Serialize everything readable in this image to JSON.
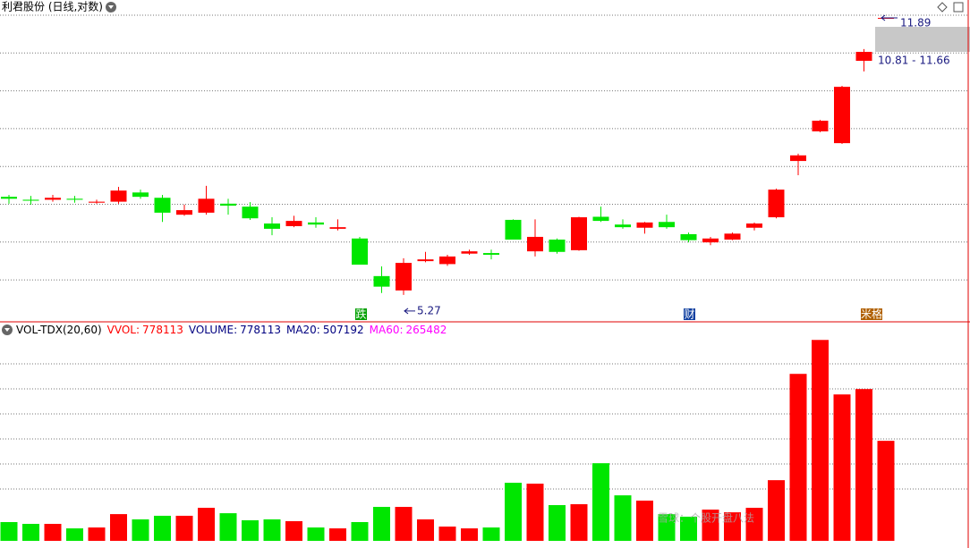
{
  "chart_data": {
    "type": "candlestick",
    "title": "利君股份 (日线,对数)",
    "log_scale": true,
    "ylim": [
      4.87,
      12.53
    ],
    "up_color": "#ff0000",
    "down_color": "#00e600",
    "open": [
      7.03,
      6.97,
      6.97,
      6.99,
      6.91,
      6.93,
      7.12,
      7.01,
      6.67,
      6.71,
      6.89,
      6.83,
      6.5,
      6.45,
      6.52,
      6.4,
      6.22,
      5.57,
      5.34,
      5.82,
      5.77,
      5.95,
      5.96,
      6.57,
      5.99,
      6.2,
      6.01,
      6.63,
      6.48,
      6.42,
      6.53,
      6.3,
      6.15,
      6.2,
      6.42,
      6.62,
      7.81,
      8.52,
      8.23,
      10.48,
      11.87
    ],
    "high": [
      7.07,
      7.05,
      7.07,
      7.05,
      6.97,
      7.24,
      7.18,
      7.07,
      6.87,
      7.26,
      6.99,
      6.92,
      6.62,
      6.65,
      6.62,
      6.58,
      6.25,
      5.73,
      5.87,
      5.98,
      5.93,
      6.02,
      6.02,
      6.58,
      6.58,
      6.22,
      6.63,
      6.83,
      6.58,
      6.53,
      6.67,
      6.33,
      6.25,
      6.33,
      6.52,
      7.2,
      7.98,
      8.81,
      9.74,
      10.85,
      11.89
    ],
    "low": [
      6.89,
      6.87,
      6.93,
      6.91,
      6.89,
      6.89,
      6.99,
      6.53,
      6.65,
      6.67,
      6.67,
      6.57,
      6.28,
      6.43,
      6.42,
      6.37,
      5.76,
      5.3,
      5.27,
      5.8,
      5.74,
      5.93,
      5.85,
      6.2,
      5.9,
      5.95,
      6.0,
      6.53,
      6.4,
      6.31,
      6.4,
      6.15,
      6.1,
      6.19,
      6.37,
      6.6,
      7.49,
      8.5,
      8.21,
      10.16,
      11.87
    ],
    "close": [
      6.99,
      6.95,
      7.01,
      6.97,
      6.93,
      7.16,
      7.03,
      6.71,
      6.76,
      6.99,
      6.85,
      6.6,
      6.4,
      6.55,
      6.48,
      6.43,
      5.76,
      5.4,
      5.79,
      5.85,
      5.9,
      5.99,
      5.93,
      6.2,
      6.25,
      5.98,
      6.62,
      6.55,
      6.43,
      6.52,
      6.43,
      6.19,
      6.22,
      6.31,
      6.5,
      7.18,
      7.94,
      8.79,
      9.71,
      10.76,
      11.89
    ],
    "annotations": {
      "high_label": 11.89,
      "range_label": "10.81 - 11.66",
      "low_label": 5.27
    },
    "markers": [
      "跌",
      "财",
      "米格"
    ],
    "volume_panel": {
      "title": "VOL-TDX(20,60)",
      "ylim": [
        0,
        1690000
      ],
      "values": [
        146000,
        132000,
        132000,
        97000,
        104000,
        208000,
        167000,
        195000,
        195000,
        257000,
        215000,
        160000,
        167000,
        153000,
        104000,
        97000,
        146000,
        264000,
        264000,
        167000,
        111000,
        97000,
        104000,
        452000,
        445000,
        278000,
        285000,
        604000,
        354000,
        313000,
        208000,
        188000,
        243000,
        222000,
        257000,
        472000,
        1299000,
        1563000,
        1139000,
        1181000,
        778113
      ],
      "stats": [
        {
          "name": "VVOL:",
          "value": 778113,
          "color": "#ff0000"
        },
        {
          "name": "VOLUME:",
          "value": 778113,
          "color": "#000080"
        },
        {
          "name": "MA20:",
          "value": 507192,
          "color": "#000080"
        },
        {
          "name": "MA60:",
          "value": 265482,
          "color": "#ff00ff"
        }
      ]
    },
    "watermark": "雪球：个股开盘八法"
  }
}
